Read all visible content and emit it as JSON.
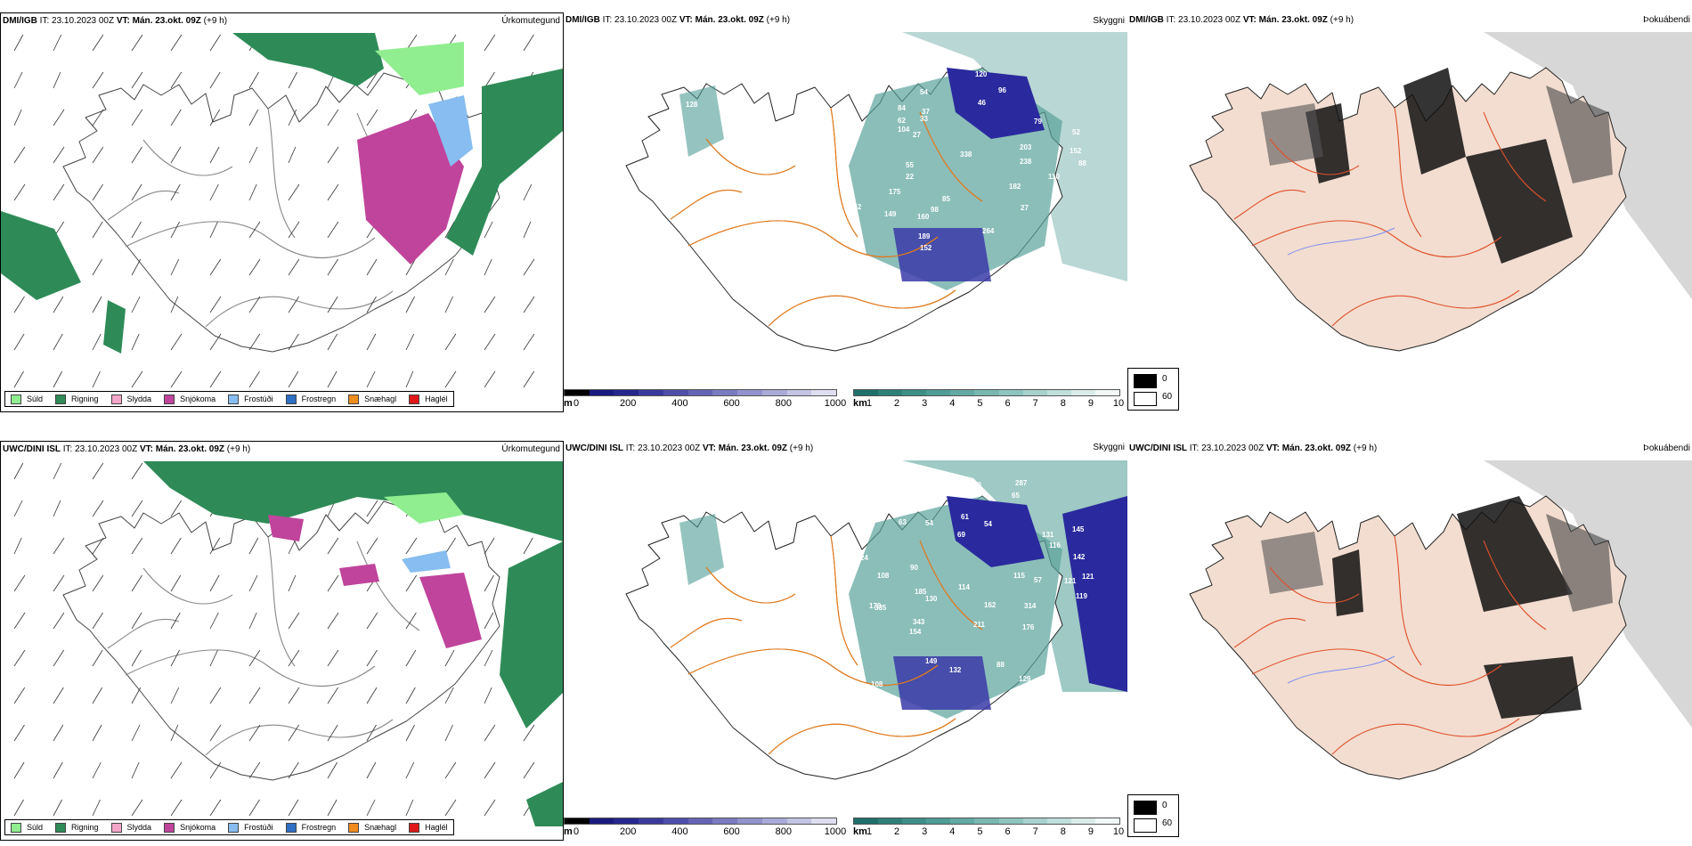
{
  "rows": [
    {
      "model": "DMI/IGB",
      "it_label": "IT:",
      "it_value": "23.10.2023 00Z",
      "vt_label": "VT:",
      "vt_value": "Mán. 23.okt. 09Z",
      "lead": "(+9 h)",
      "titles": [
        "Úrkomutegund",
        "Skyggni",
        "Þokuábendi"
      ],
      "visibility_values": [
        "89",
        "120",
        "54",
        "96",
        "46",
        "79",
        "52",
        "152",
        "88",
        "110",
        "338",
        "203",
        "238",
        "182",
        "55",
        "22",
        "175",
        "85",
        "98",
        "162",
        "149",
        "27",
        "264",
        "160",
        "189",
        "152",
        "128",
        "40",
        "84",
        "62",
        "104",
        "37",
        "33",
        "27"
      ]
    },
    {
      "model": "UWC/DINI ISL",
      "it_label": "IT:",
      "it_value": "23.10.2023 00Z",
      "vt_label": "VT:",
      "vt_value": "Mán. 23.okt. 09Z",
      "lead": "(+9 h)",
      "titles": [
        "Úrkomutegund",
        "Skyggni",
        "Þokuábendi"
      ],
      "visibility_values": [
        "113",
        "70",
        "287",
        "65",
        "58",
        "63",
        "54",
        "61",
        "69",
        "54",
        "131",
        "145",
        "116",
        "142",
        "121",
        "121",
        "119",
        "115",
        "57",
        "90",
        "114",
        "130",
        "162",
        "314",
        "176",
        "149",
        "132",
        "88",
        "129",
        "108",
        "120",
        "335",
        "170",
        "185",
        "343",
        "154",
        "211",
        "112",
        "137",
        "148",
        "108",
        "24"
      ]
    }
  ],
  "precip_legend": [
    {
      "label": "Súld",
      "color": "#90ee90"
    },
    {
      "label": "Rigning",
      "color": "#2e8b57"
    },
    {
      "label": "Slydda",
      "color": "#f4a6c8"
    },
    {
      "label": "Snjókoma",
      "color": "#c0449b"
    },
    {
      "label": "Frostúði",
      "color": "#87bdf0"
    },
    {
      "label": "Frostregn",
      "color": "#2f6fc4"
    },
    {
      "label": "Snæhagl",
      "color": "#f08c1e"
    },
    {
      "label": "Haglél",
      "color": "#e01818"
    }
  ],
  "cloudbase_scale": {
    "unit": "m",
    "ticks": [
      "0",
      "200",
      "400",
      "600",
      "800",
      "1000"
    ],
    "colors": [
      "#000000",
      "#1a1a80",
      "#26268f",
      "#3a3a9e",
      "#4e4eab",
      "#6464b6",
      "#7b7bc2",
      "#9292cd",
      "#aaaad8",
      "#c4c4e4",
      "#dedef0"
    ]
  },
  "visibility_scale": {
    "unit": "km",
    "ticks": [
      "1",
      "2",
      "3",
      "4",
      "5",
      "6",
      "7",
      "8",
      "9",
      "10"
    ],
    "colors": [
      "#1f6f6a",
      "#2e8079",
      "#3d8f88",
      "#4e9d96",
      "#62aaa3",
      "#78b8b1",
      "#8fc5bf",
      "#a7d2cd",
      "#c0dfdb",
      "#daece9",
      "#f2f8f7"
    ]
  },
  "fog_legend": [
    {
      "label": "0",
      "color": "#000000"
    },
    {
      "label": "60",
      "color": "#ffffff"
    }
  ]
}
